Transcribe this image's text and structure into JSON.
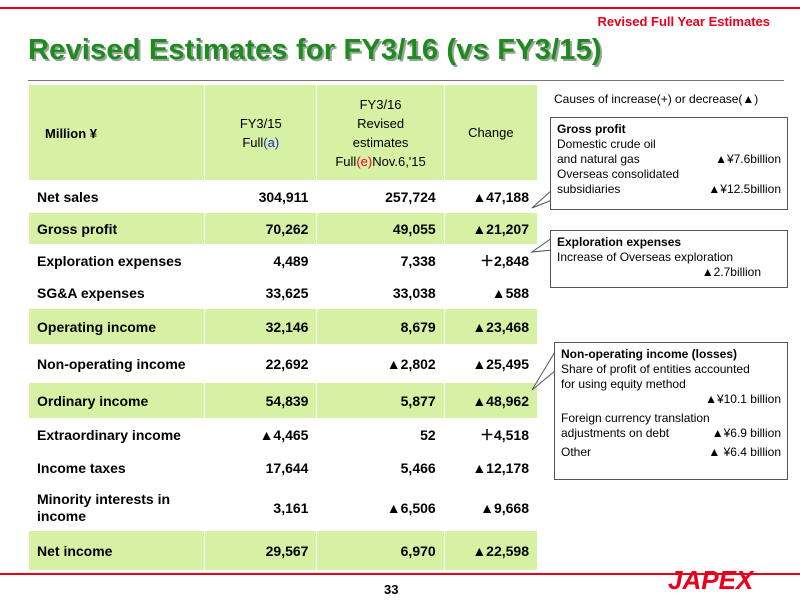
{
  "header": {
    "subtitle": "Revised Full Year Estimates",
    "title": "Revised Estimates for FY3/16 (vs FY3/15)"
  },
  "table": {
    "head": {
      "unit": "Million ¥",
      "col1_line1": "FY3/15",
      "col1_full": "Full",
      "col1_mark": "(a)",
      "col2_line1": "FY3/16",
      "col2_line2": "Revised",
      "col2_line3": "estimates",
      "col2_full": "Full",
      "col2_mark": "(e)",
      "col2_date": "Nov.6,'15",
      "col3": "Change"
    },
    "rows": [
      {
        "label": "Net sales",
        "fy15": "304,911",
        "fy16": "257,724",
        "change": "▲47,188"
      },
      {
        "label": "Gross profit",
        "fy15": "70,262",
        "fy16": "49,055",
        "change": "▲21,207"
      },
      {
        "label": "Exploration expenses",
        "fy15": "4,489",
        "fy16": "7,338",
        "change": "＋2,848"
      },
      {
        "label": "SG&A expenses",
        "fy15": "33,625",
        "fy16": "33,038",
        "change": "▲588"
      },
      {
        "label": "Operating income",
        "fy15": "32,146",
        "fy16": "8,679",
        "change": "▲23,468"
      },
      {
        "label": "Non-operating income",
        "fy15": "22,692",
        "fy16": "▲2,802",
        "change": "▲25,495"
      },
      {
        "label": "Ordinary income",
        "fy15": "54,839",
        "fy16": "5,877",
        "change": "▲48,962"
      },
      {
        "label": "Extraordinary income",
        "fy15": "▲4,465",
        "fy16": "52",
        "change": "＋4,518"
      },
      {
        "label": "Income taxes",
        "fy15": "17,644",
        "fy16": "5,466",
        "change": "▲12,178"
      },
      {
        "label": "Minority interests in income",
        "fy15": "3,161",
        "fy16": "▲6,506",
        "change": "▲9,668"
      },
      {
        "label": "Net income",
        "fy15": "29,567",
        "fy16": "6,970",
        "change": "▲22,598"
      }
    ]
  },
  "causes": {
    "title": "Causes of increase(+)  or decrease(▲)",
    "gross_profit": {
      "heading": "Gross profit",
      "line1": "Domestic crude oil",
      "line2": "and natural gas",
      "value1": "▲¥7.6billion",
      "line3": "Overseas consolidated",
      "line4": "subsidiaries",
      "value2": "▲¥12.5billion"
    },
    "exploration": {
      "heading": "Exploration expenses",
      "line1": "Increase of Overseas exploration",
      "value1": "▲2.7billion"
    },
    "non_operating": {
      "heading": "Non-operating income (losses)",
      "line1": "Share of profit of entities accounted",
      "line2": "for using equity method",
      "value1": "▲¥10.1 billion",
      "line3": "Foreign currency translation",
      "line4": "adjustments on debt",
      "value2": "▲¥6.9 billion",
      "line5": "Other",
      "value3": "▲ ¥6.4 billion"
    }
  },
  "footer": {
    "page": "33",
    "logo": "JAPEX"
  },
  "colors": {
    "accent_red": "#e8001c",
    "title_green": "#1f8a1f",
    "row_green": "#d6f0a4"
  }
}
